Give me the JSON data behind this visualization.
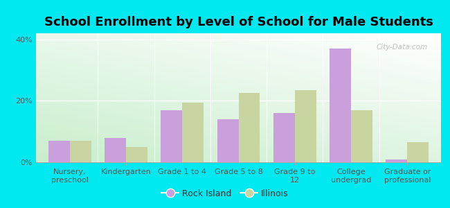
{
  "title": "School Enrollment by Level of School for Male Students",
  "categories": [
    "Nursery,\npreschool",
    "Kindergarten",
    "Grade 1 to 4",
    "Grade 5 to 8",
    "Grade 9 to\n12",
    "College\nundergrad",
    "Graduate or\nprofessional"
  ],
  "rock_island": [
    7.0,
    8.0,
    17.0,
    14.0,
    16.0,
    37.0,
    1.0
  ],
  "illinois": [
    7.0,
    5.0,
    19.5,
    22.5,
    23.5,
    17.0,
    6.5
  ],
  "rock_island_color": "#c9a0dc",
  "illinois_color": "#c8d5a0",
  "background_outer": "#00e8f0",
  "background_inner_bottom": "#c8eecc",
  "background_inner_top": "#f5fff5",
  "ylim": [
    0,
    42
  ],
  "yticks": [
    0,
    20,
    40
  ],
  "ytick_labels": [
    "0%",
    "20%",
    "40%"
  ],
  "legend_labels": [
    "Rock Island",
    "Illinois"
  ],
  "bar_width": 0.38,
  "title_fontsize": 13,
  "tick_fontsize": 8,
  "legend_fontsize": 9,
  "watermark": "City-Data.com"
}
